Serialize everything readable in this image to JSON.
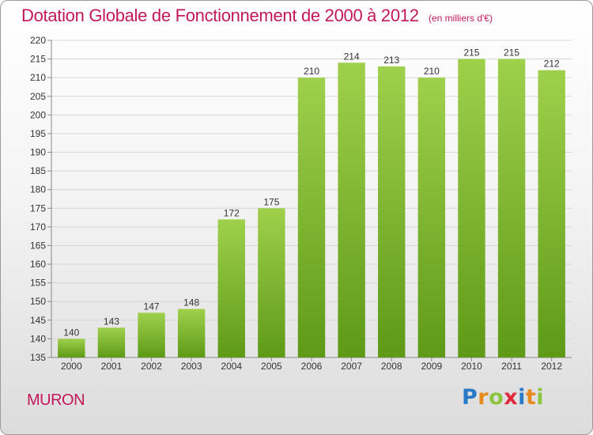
{
  "title": "Dotation Globale de Fonctionnement de 2000 à 2012",
  "unit": "(en milliers d'€)",
  "commune": "MURON",
  "brand": {
    "text": "Proxiti",
    "letter_colors": [
      "#2a7ac8",
      "#e7891d",
      "#8bc53f",
      "#e2283c",
      "#2a7ac8",
      "#e7891d",
      "#8bc53f"
    ]
  },
  "colors": {
    "title": "#c2185b",
    "bar_top": "#9fd04c",
    "bar_bottom": "#5e9a17"
  },
  "chart_data": {
    "type": "bar",
    "categories": [
      "2000",
      "2001",
      "2002",
      "2003",
      "2004",
      "2005",
      "2006",
      "2007",
      "2008",
      "2009",
      "2010",
      "2011",
      "2012"
    ],
    "values": [
      140,
      143,
      147,
      148,
      172,
      175,
      210,
      214,
      213,
      210,
      215,
      215,
      212
    ],
    "ylim": [
      135,
      220
    ],
    "ytick_step": 5,
    "grid": true,
    "legend": "none",
    "xlabel": "",
    "ylabel": ""
  }
}
